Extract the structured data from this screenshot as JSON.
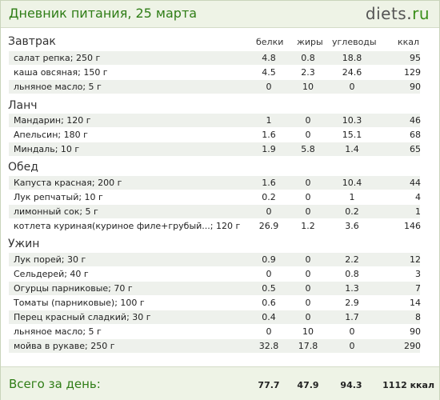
{
  "header": {
    "title": "Дневник питания, 25 марта",
    "logo_name": "diets",
    "logo_dot": ".",
    "logo_tld": "ru"
  },
  "columns": {
    "protein": "белки",
    "fat": "жиры",
    "carbs": "углеводы",
    "kcal": "ккал"
  },
  "meals": [
    {
      "title": "Завтрак",
      "items": [
        {
          "name": "салат репка; 250 г",
          "protein": "4.8",
          "fat": "0.8",
          "carbs": "18.8",
          "kcal": "95"
        },
        {
          "name": "каша овсяная; 150 г",
          "protein": "4.5",
          "fat": "2.3",
          "carbs": "24.6",
          "kcal": "129"
        },
        {
          "name": "льняное масло; 5 г",
          "protein": "0",
          "fat": "10",
          "carbs": "0",
          "kcal": "90"
        }
      ]
    },
    {
      "title": "Ланч",
      "items": [
        {
          "name": "Мандарин; 120 г",
          "protein": "1",
          "fat": "0",
          "carbs": "10.3",
          "kcal": "46"
        },
        {
          "name": "Апельсин; 180 г",
          "protein": "1.6",
          "fat": "0",
          "carbs": "15.1",
          "kcal": "68"
        },
        {
          "name": "Миндаль; 10 г",
          "protein": "1.9",
          "fat": "5.8",
          "carbs": "1.4",
          "kcal": "65"
        }
      ]
    },
    {
      "title": "Обед",
      "items": [
        {
          "name": "Капуста красная; 200 г",
          "protein": "1.6",
          "fat": "0",
          "carbs": "10.4",
          "kcal": "44"
        },
        {
          "name": "Лук репчатый; 10 г",
          "protein": "0.2",
          "fat": "0",
          "carbs": "1",
          "kcal": "4"
        },
        {
          "name": "лимонный сок; 5 г",
          "protein": "0",
          "fat": "0",
          "carbs": "0.2",
          "kcal": "1"
        },
        {
          "name": "котлета куриная(куриное филе+грубый...; 120 г",
          "protein": "26.9",
          "fat": "1.2",
          "carbs": "3.6",
          "kcal": "146"
        }
      ]
    },
    {
      "title": "Ужин",
      "items": [
        {
          "name": "Лук порей; 30 г",
          "protein": "0.9",
          "fat": "0",
          "carbs": "2.2",
          "kcal": "12"
        },
        {
          "name": "Сельдерей; 40 г",
          "protein": "0",
          "fat": "0",
          "carbs": "0.8",
          "kcal": "3"
        },
        {
          "name": "Огурцы парниковые; 70 г",
          "protein": "0.5",
          "fat": "0",
          "carbs": "1.3",
          "kcal": "7"
        },
        {
          "name": "Томаты (парниковые); 100 г",
          "protein": "0.6",
          "fat": "0",
          "carbs": "2.9",
          "kcal": "14"
        },
        {
          "name": "Перец красный сладкий; 30 г",
          "protein": "0.4",
          "fat": "0",
          "carbs": "1.7",
          "kcal": "8"
        },
        {
          "name": "льняное масло; 5 г",
          "protein": "0",
          "fat": "10",
          "carbs": "0",
          "kcal": "90"
        },
        {
          "name": "мойва в рукаве; 250 г",
          "protein": "32.8",
          "fat": "17.8",
          "carbs": "0",
          "kcal": "290"
        }
      ]
    }
  ],
  "totals": {
    "label": "Всего за день:",
    "protein": "77.7",
    "fat": "47.9",
    "carbs": "94.3",
    "kcal": "1112 ккал"
  }
}
